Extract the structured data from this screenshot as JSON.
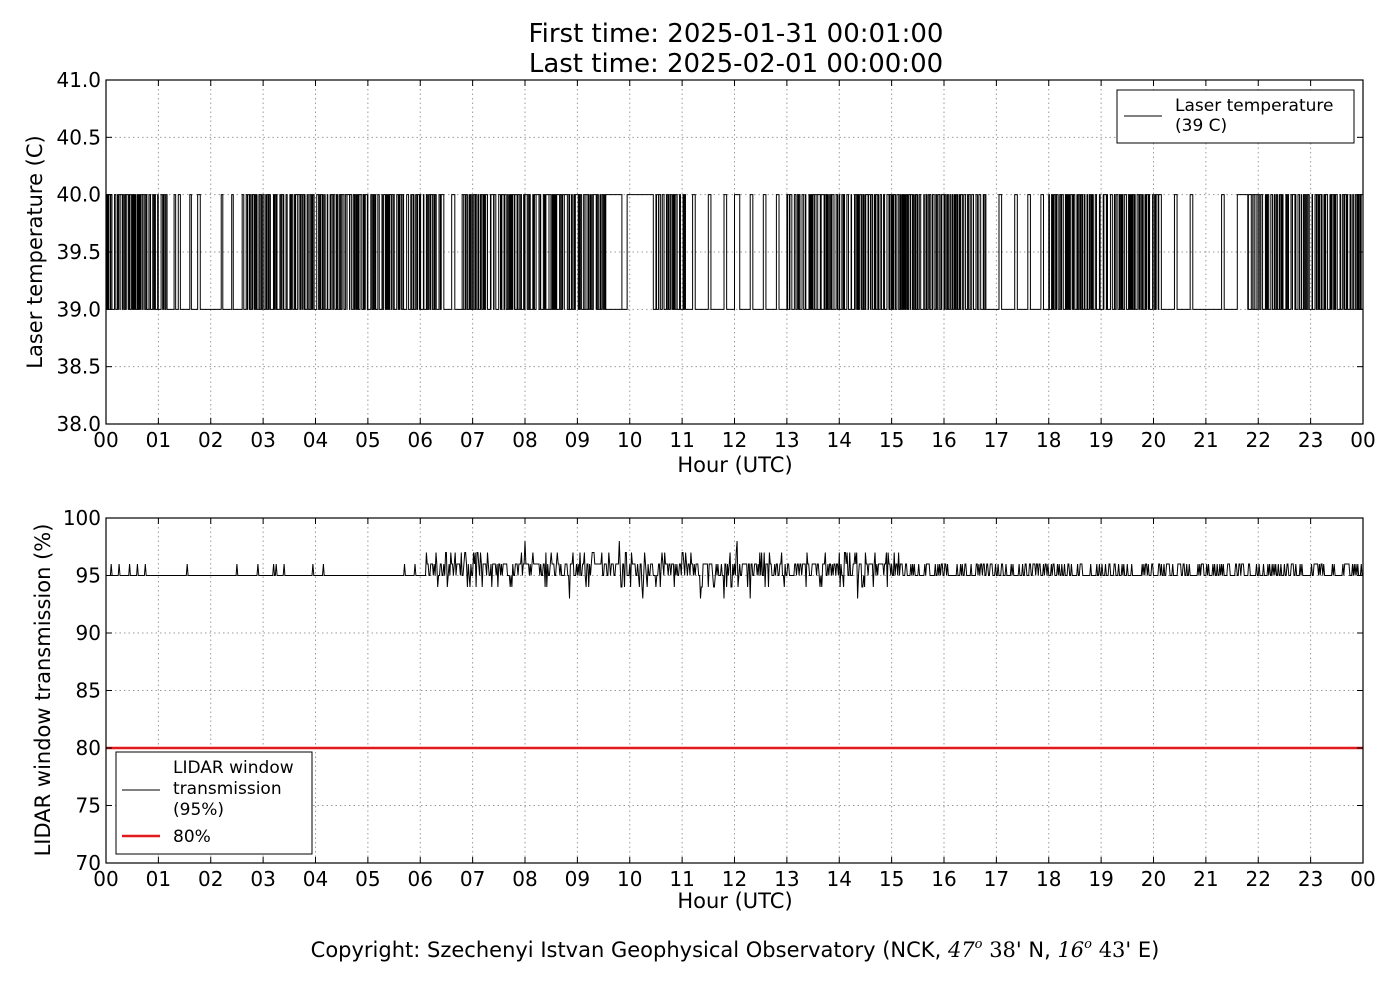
{
  "header": {
    "first_time": "First time: 2025-01-31 00:01:00",
    "last_time": "Last time: 2025-02-01 00:00:00"
  },
  "footer": {
    "copyright_prefix": "Copyright: Szechenyi Istvan Geophysical Observatory (NCK, ",
    "lat_deg": "47",
    "deg_mark": "o",
    "lat_min": "38",
    "lat_suffix": "' N, ",
    "lon_deg": "16",
    "lon_min": "43",
    "lon_suffix": "' E)"
  },
  "colors": {
    "line": "#000000",
    "threshold": "#e31a1c",
    "grid": "#9a9a9a"
  },
  "chart_data": [
    {
      "type": "line",
      "ylabel": "Laser temperature (C)",
      "xlabel": "Hour (UTC)",
      "xlim": [
        0,
        24
      ],
      "ylim": [
        38.0,
        41.0
      ],
      "grid": true,
      "x_ticks": [
        "00",
        "01",
        "02",
        "03",
        "04",
        "05",
        "06",
        "07",
        "08",
        "09",
        "10",
        "11",
        "12",
        "13",
        "14",
        "15",
        "16",
        "17",
        "18",
        "19",
        "20",
        "21",
        "22",
        "23",
        "00"
      ],
      "y_ticks": [
        "38.0",
        "38.5",
        "39.0",
        "39.5",
        "40.0",
        "40.5",
        "41.0"
      ],
      "legend": {
        "placement": "top-right",
        "entries": [
          {
            "line1": "Laser temperature",
            "line2": "(39 C)",
            "color": "#000000"
          }
        ]
      },
      "series": [
        {
          "name": "Laser temperature (39 C)",
          "levels": [
            39.0,
            40.0
          ],
          "segments_at_40": [
            [
              0.05,
              0.08
            ],
            [
              0.22,
              0.24
            ],
            [
              0.27,
              0.31
            ],
            [
              0.36,
              0.38
            ],
            [
              0.45,
              0.5
            ],
            [
              0.52,
              0.55
            ],
            [
              0.6,
              0.63
            ],
            [
              0.67,
              0.7
            ],
            [
              0.74,
              0.78
            ],
            [
              0.82,
              0.85
            ],
            [
              1.3,
              1.33
            ],
            [
              1.38,
              1.42
            ],
            [
              1.6,
              1.63
            ],
            [
              1.75,
              1.8
            ],
            [
              2.2,
              2.23
            ],
            [
              2.4,
              2.43
            ],
            [
              2.7,
              2.74
            ],
            [
              2.8,
              2.85
            ],
            [
              2.92,
              2.97
            ],
            [
              3.05,
              3.1
            ],
            [
              3.2,
              3.24
            ],
            [
              3.33,
              3.38
            ],
            [
              3.6,
              3.66
            ],
            [
              3.75,
              3.8
            ],
            [
              3.9,
              3.95
            ],
            [
              4.08,
              4.13
            ],
            [
              4.28,
              4.33
            ],
            [
              4.45,
              4.5
            ],
            [
              4.6,
              4.65
            ],
            [
              4.78,
              4.85
            ],
            [
              4.95,
              5.0
            ],
            [
              5.1,
              5.15
            ],
            [
              5.3,
              5.35
            ],
            [
              5.45,
              5.5
            ],
            [
              5.6,
              5.67
            ],
            [
              5.82,
              5.88
            ],
            [
              5.95,
              6.0
            ],
            [
              6.2,
              6.26
            ],
            [
              6.4,
              6.45
            ],
            [
              6.6,
              6.66
            ],
            [
              6.8,
              6.86
            ],
            [
              7.0,
              7.05
            ],
            [
              7.15,
              7.2
            ],
            [
              7.35,
              7.4
            ],
            [
              7.55,
              7.6
            ],
            [
              7.75,
              7.9
            ],
            [
              8.0,
              8.1
            ],
            [
              8.18,
              8.3
            ],
            [
              8.35,
              8.5
            ],
            [
              8.58,
              8.7
            ],
            [
              8.75,
              8.85
            ],
            [
              8.95,
              9.05
            ],
            [
              9.12,
              9.22
            ],
            [
              9.3,
              9.4
            ],
            [
              9.5,
              9.85
            ],
            [
              9.95,
              10.45
            ],
            [
              10.5,
              10.55
            ],
            [
              10.7,
              10.75
            ],
            [
              10.85,
              10.9
            ],
            [
              11.2,
              11.25
            ],
            [
              11.5,
              11.55
            ],
            [
              11.8,
              11.85
            ],
            [
              12.0,
              12.1
            ],
            [
              12.3,
              12.35
            ],
            [
              12.55,
              12.6
            ],
            [
              12.8,
              12.85
            ],
            [
              13.0,
              13.05
            ],
            [
              13.2,
              13.25
            ],
            [
              13.45,
              13.75
            ],
            [
              13.85,
              13.9
            ],
            [
              14.05,
              14.1
            ],
            [
              14.3,
              14.35
            ],
            [
              14.5,
              14.55
            ],
            [
              14.7,
              14.75
            ],
            [
              14.95,
              15.0
            ],
            [
              15.2,
              15.25
            ],
            [
              15.45,
              15.5
            ],
            [
              15.7,
              15.75
            ],
            [
              15.95,
              16.0
            ],
            [
              16.2,
              16.25
            ],
            [
              16.45,
              16.5
            ],
            [
              16.75,
              16.8
            ],
            [
              17.05,
              17.1
            ],
            [
              17.35,
              17.4
            ],
            [
              17.6,
              17.65
            ],
            [
              17.85,
              17.9
            ],
            [
              18.1,
              18.15
            ],
            [
              18.35,
              18.4
            ],
            [
              18.6,
              18.65
            ],
            [
              18.8,
              18.85
            ],
            [
              19.05,
              19.1
            ],
            [
              19.35,
              19.4
            ],
            [
              19.6,
              19.65
            ],
            [
              19.85,
              19.9
            ],
            [
              20.1,
              20.15
            ],
            [
              20.4,
              20.45
            ],
            [
              20.7,
              20.75
            ],
            [
              21.3,
              21.35
            ],
            [
              21.6,
              22.0
            ],
            [
              22.15,
              22.2
            ],
            [
              22.4,
              22.45
            ],
            [
              22.65,
              22.7
            ],
            [
              22.9,
              22.95
            ],
            [
              23.15,
              23.2
            ],
            [
              23.4,
              23.45
            ],
            [
              23.65,
              23.7
            ],
            [
              23.85,
              23.9
            ]
          ],
          "dense_switching_ranges": [
            [
              0.0,
              1.2
            ],
            [
              2.6,
              6.4
            ],
            [
              6.8,
              9.6
            ],
            [
              10.5,
              11.1
            ],
            [
              13.0,
              16.8
            ],
            [
              18.0,
              20.1
            ],
            [
              21.8,
              24.0
            ]
          ]
        }
      ]
    },
    {
      "type": "line",
      "ylabel": "LIDAR window transmission (%)",
      "xlabel": "Hour (UTC)",
      "xlim": [
        0,
        24
      ],
      "ylim": [
        70,
        100
      ],
      "grid": true,
      "x_ticks": [
        "00",
        "01",
        "02",
        "03",
        "04",
        "05",
        "06",
        "07",
        "08",
        "09",
        "10",
        "11",
        "12",
        "13",
        "14",
        "15",
        "16",
        "17",
        "18",
        "19",
        "20",
        "21",
        "22",
        "23",
        "00"
      ],
      "y_ticks": [
        "70",
        "75",
        "80",
        "85",
        "90",
        "95",
        "100"
      ],
      "legend": {
        "placement": "bottom-left",
        "entries": [
          {
            "line1": "LIDAR window",
            "line2": "transmission",
            "line3": "(95%)",
            "color": "#000000"
          },
          {
            "line1": "80%",
            "color": "#e31a1c"
          }
        ]
      },
      "series": [
        {
          "name": "LIDAR window transmission (95%)",
          "baseline": 95,
          "spikes": [
            [
              0.1,
              96
            ],
            [
              0.25,
              96
            ],
            [
              0.45,
              96
            ],
            [
              0.6,
              96
            ],
            [
              0.75,
              96
            ],
            [
              1.55,
              96
            ],
            [
              2.5,
              96
            ],
            [
              2.9,
              96
            ],
            [
              3.2,
              96
            ],
            [
              3.25,
              96
            ],
            [
              3.4,
              96
            ],
            [
              3.95,
              96
            ],
            [
              4.15,
              96
            ],
            [
              5.7,
              96
            ],
            [
              5.9,
              96
            ]
          ],
          "noisy_ranges": [
            {
              "x": [
                6.1,
                15.2
              ],
              "min": 93,
              "max": 98
            },
            {
              "x": [
                15.2,
                24.0
              ],
              "min": 95,
              "max": 96
            }
          ],
          "notable_points": [
            [
              6.9,
              94
            ],
            [
              7.05,
              97
            ],
            [
              8.0,
              98
            ],
            [
              8.85,
              93
            ],
            [
              9.8,
              98
            ],
            [
              10.25,
              93
            ],
            [
              11.35,
              93
            ],
            [
              11.8,
              93
            ],
            [
              12.05,
              98
            ],
            [
              12.3,
              93
            ],
            [
              14.35,
              93
            ],
            [
              14.5,
              97
            ],
            [
              14.9,
              97
            ]
          ]
        },
        {
          "name": "80%",
          "constant": 80,
          "color": "#e31a1c"
        }
      ]
    }
  ]
}
